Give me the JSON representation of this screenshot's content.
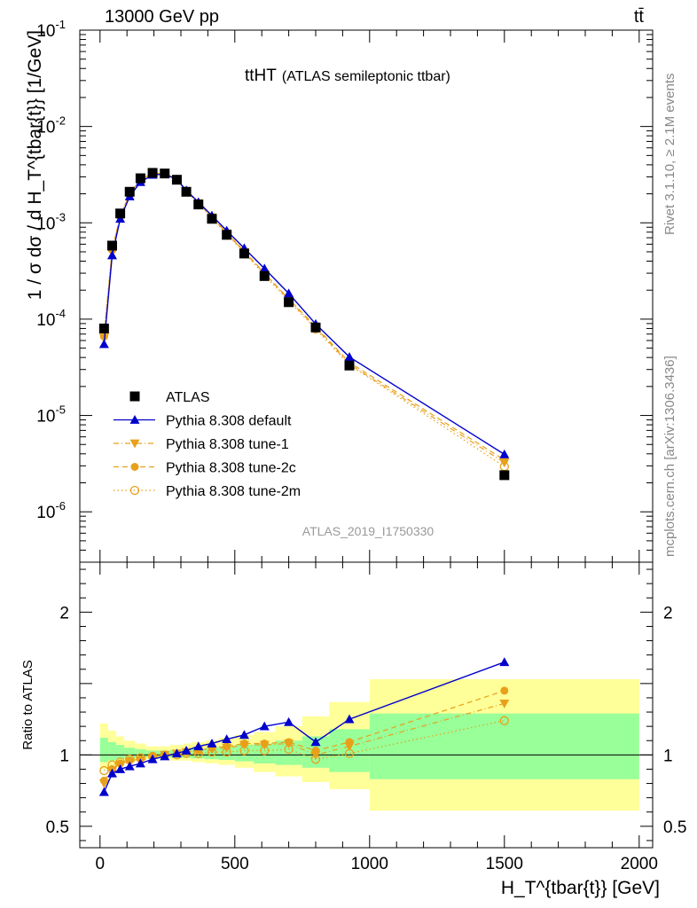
{
  "header": {
    "left": "13000 GeV pp",
    "right": "tt̄"
  },
  "side_labels": {
    "rivet": "Rivet 3.1.10, ≥ 2.1M events",
    "mcplots": "mcplots.cern.ch [arXiv:1306.3436]"
  },
  "watermark": "ATLAS_2019_I1750330",
  "plot_title": {
    "main": "ttHT",
    "sub": "(ATLAS semileptonic ttbar)"
  },
  "colors": {
    "atlas": "#000000",
    "default": "#0000cc",
    "tunes": "#e8a01a",
    "band_outer": "#ffff99",
    "band_inner": "#99ff99"
  },
  "chart_data": [
    {
      "type": "line",
      "panel": "main",
      "ylabel": "1 / σ dσ / d H_T^{tbar{t}} [1/GeV]",
      "yscale": "log",
      "ylim": [
        3e-07,
        0.1
      ],
      "xlim": [
        -75,
        2050
      ],
      "y_ticks": [
        {
          "v": 1e-06,
          "exp": "-6"
        },
        {
          "v": 1e-05,
          "exp": "-5"
        },
        {
          "v": 0.0001,
          "exp": "-4"
        },
        {
          "v": 0.001,
          "exp": "-3"
        },
        {
          "v": 0.01,
          "exp": "-2"
        },
        {
          "v": 0.1,
          "exp": "-1"
        }
      ],
      "x": [
        15,
        45,
        75,
        110,
        150,
        195,
        240,
        285,
        320,
        365,
        415,
        470,
        535,
        610,
        700,
        800,
        925,
        1500
      ],
      "series": [
        {
          "name": "ATLAS",
          "key": "atlas",
          "marker": "square",
          "values": [
            8e-05,
            0.00058,
            0.00125,
            0.0021,
            0.0029,
            0.0033,
            0.00325,
            0.0028,
            0.0021,
            0.00155,
            0.0011,
            0.00075,
            0.00048,
            0.00028,
            0.00015,
            8.2e-05,
            3.3e-05,
            2.4e-06
          ]
        },
        {
          "name": "Pythia 8.308 default",
          "key": "default",
          "marker": "triangle-up",
          "dash": "",
          "values": [
            5.5e-05,
            0.00046,
            0.0011,
            0.00188,
            0.00265,
            0.00315,
            0.0032,
            0.00282,
            0.00217,
            0.00164,
            0.00119,
            0.00083,
            0.000545,
            0.000335,
            0.000185,
            8.9e-05,
            4.05e-05,
            3.95e-06
          ]
        },
        {
          "name": "Pythia 8.308 tune-1",
          "key": "tune1",
          "marker": "triangle-down",
          "dash": "6,3,1,3",
          "values": [
            6.4e-05,
            0.00051,
            0.00116,
            0.00198,
            0.00278,
            0.00325,
            0.00325,
            0.00282,
            0.00214,
            0.0016,
            0.00114,
            0.00078,
            0.0005,
            0.000297,
            0.00016,
            8.2e-05,
            3.4e-05,
            3.25e-06
          ]
        },
        {
          "name": "Pythia 8.308 tune-2c",
          "key": "tune2c",
          "marker": "circle",
          "dash": "6,4",
          "values": [
            6.6e-05,
            0.00052,
            0.00117,
            0.002,
            0.0028,
            0.00327,
            0.00326,
            0.00283,
            0.00215,
            0.00161,
            0.00115,
            0.00079,
            0.00051,
            0.0003,
            0.000162,
            8.4e-05,
            3.55e-05,
            3.45e-06
          ]
        },
        {
          "name": "Pythia 8.308 tune-2m",
          "key": "tune2m",
          "marker": "circle-open",
          "dash": "1.5,3",
          "values": [
            7.1e-05,
            0.00054,
            0.00119,
            0.00203,
            0.00283,
            0.00328,
            0.00326,
            0.00282,
            0.00212,
            0.00158,
            0.00112,
            0.00076,
            0.00049,
            0.000286,
            0.000155,
            7.9e-05,
            3.35e-05,
            2.95e-06
          ]
        }
      ],
      "legend_position": "bottom-left",
      "legend": [
        {
          "label": "ATLAS",
          "key": "atlas"
        },
        {
          "label": "Pythia 8.308 default",
          "key": "default"
        },
        {
          "label": "Pythia 8.308 tune-1",
          "key": "tune1"
        },
        {
          "label": "Pythia 8.308 tune-2c",
          "key": "tune2c"
        },
        {
          "label": "Pythia 8.308 tune-2m",
          "key": "tune2m"
        }
      ]
    },
    {
      "type": "line",
      "panel": "ratio",
      "ylabel": "Ratio to ATLAS",
      "xlabel": "H_T^{tbar{t}} [GeV]",
      "ylim": [
        0.35,
        2.35
      ],
      "xlim": [
        -75,
        2050
      ],
      "x_ticks": [
        0,
        500,
        1000,
        1500,
        2000
      ],
      "y_ticks": [
        0.5,
        1,
        2
      ],
      "bins": [
        [
          0,
          30
        ],
        [
          30,
          60
        ],
        [
          60,
          90
        ],
        [
          90,
          130
        ],
        [
          130,
          170
        ],
        [
          170,
          220
        ],
        [
          220,
          260
        ],
        [
          260,
          310
        ],
        [
          310,
          340
        ],
        [
          340,
          390
        ],
        [
          390,
          440
        ],
        [
          440,
          500
        ],
        [
          500,
          570
        ],
        [
          570,
          650
        ],
        [
          650,
          750
        ],
        [
          750,
          850
        ],
        [
          850,
          1000
        ],
        [
          1000,
          2000
        ]
      ],
      "band_outer": [
        [
          0.9,
          1.22
        ],
        [
          0.92,
          1.17
        ],
        [
          0.94,
          1.13
        ],
        [
          0.95,
          1.1
        ],
        [
          0.96,
          1.08
        ],
        [
          0.97,
          1.06
        ],
        [
          0.97,
          1.06
        ],
        [
          0.96,
          1.07
        ],
        [
          0.96,
          1.08
        ],
        [
          0.95,
          1.09
        ],
        [
          0.94,
          1.1
        ],
        [
          0.93,
          1.12
        ],
        [
          0.91,
          1.14
        ],
        [
          0.88,
          1.16
        ],
        [
          0.85,
          1.2
        ],
        [
          0.81,
          1.27
        ],
        [
          0.76,
          1.37
        ],
        [
          0.61,
          1.53
        ]
      ],
      "band_inner": [
        [
          0.95,
          1.12
        ],
        [
          0.96,
          1.09
        ],
        [
          0.97,
          1.07
        ],
        [
          0.975,
          1.05
        ],
        [
          0.98,
          1.04
        ],
        [
          0.985,
          1.03
        ],
        [
          0.985,
          1.03
        ],
        [
          0.98,
          1.035
        ],
        [
          0.98,
          1.04
        ],
        [
          0.975,
          1.045
        ],
        [
          0.97,
          1.05
        ],
        [
          0.965,
          1.06
        ],
        [
          0.955,
          1.07
        ],
        [
          0.94,
          1.08
        ],
        [
          0.93,
          1.1
        ],
        [
          0.91,
          1.13
        ],
        [
          0.88,
          1.18
        ],
        [
          0.83,
          1.29
        ]
      ],
      "x": [
        15,
        45,
        75,
        110,
        150,
        195,
        240,
        285,
        320,
        365,
        415,
        470,
        535,
        610,
        700,
        800,
        925,
        1500
      ],
      "series": [
        {
          "name": "Pythia 8.308 default",
          "key": "default",
          "values": [
            0.74,
            0.87,
            0.9,
            0.92,
            0.94,
            0.97,
            0.99,
            1.01,
            1.03,
            1.06,
            1.08,
            1.11,
            1.14,
            1.2,
            1.23,
            1.09,
            1.25,
            1.65
          ]
        },
        {
          "name": "Pythia 8.308 tune-1",
          "key": "tune1",
          "values": [
            0.8,
            0.89,
            0.93,
            0.95,
            0.96,
            0.98,
            1.0,
            1.01,
            1.02,
            1.03,
            1.04,
            1.05,
            1.07,
            1.07,
            1.08,
            1.0,
            1.06,
            1.36
          ]
        },
        {
          "name": "Pythia 8.308 tune-2c",
          "key": "tune2c",
          "values": [
            0.82,
            0.9,
            0.94,
            0.96,
            0.97,
            0.99,
            1.0,
            1.01,
            1.02,
            1.03,
            1.05,
            1.06,
            1.08,
            1.08,
            1.09,
            1.03,
            1.09,
            1.45
          ]
        },
        {
          "name": "Pythia 8.308 tune-2m",
          "key": "tune2m",
          "values": [
            0.89,
            0.93,
            0.95,
            0.97,
            0.98,
            0.99,
            1.0,
            1.0,
            1.01,
            1.01,
            1.02,
            1.02,
            1.03,
            1.03,
            1.04,
            0.97,
            1.01,
            1.24
          ]
        }
      ]
    }
  ]
}
